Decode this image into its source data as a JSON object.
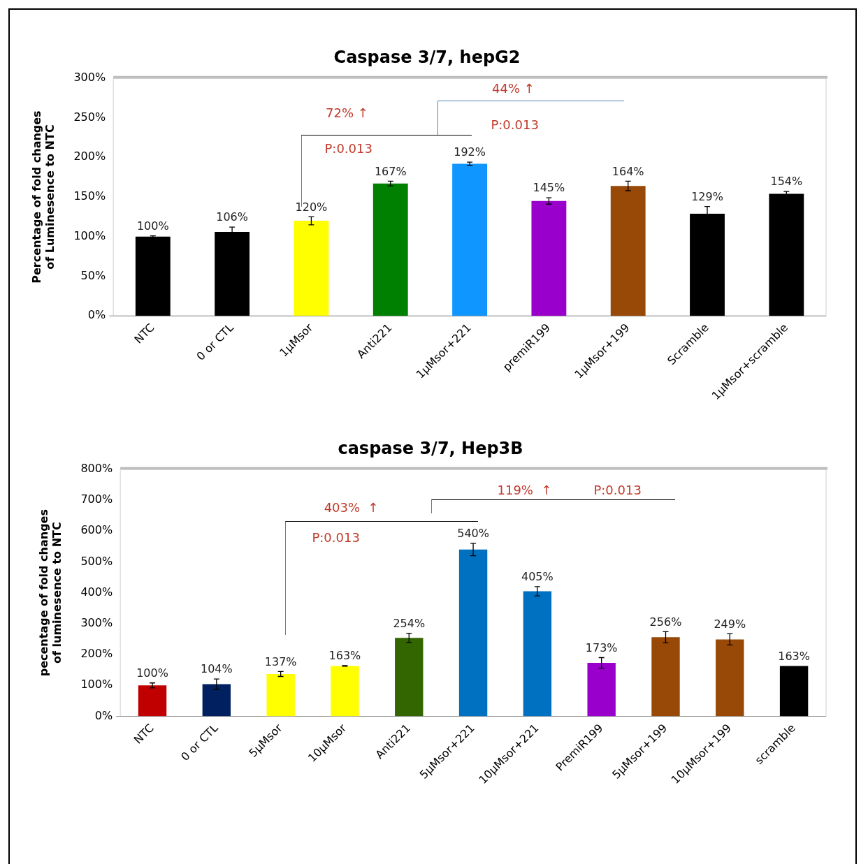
{
  "chart_data": [
    {
      "type": "bar",
      "title": "Caspase 3/7, hepG2",
      "ylabel": "Percentage of fold changes of Luminesence to NTC",
      "categories": [
        "NTC",
        "0 or CTL",
        "1μMsor",
        "Anti221",
        "1μMsor+221",
        "premiR199",
        "1μMsor+199",
        "Scramble",
        "1μMsor+scramble"
      ],
      "values": [
        100,
        106,
        120,
        167,
        192,
        145,
        164,
        129,
        154
      ],
      "colors": [
        "#000000",
        "#000000",
        "#ffff00",
        "#008000",
        "#0f97ff",
        "#9900cc",
        "#984807",
        "#000000",
        "#000000"
      ],
      "errors": [
        1,
        6,
        5,
        3,
        2,
        4,
        6,
        9,
        3
      ],
      "value_labels": [
        "100%",
        "106%",
        "120%",
        "167%",
        "192%",
        "145%",
        "164%",
        "129%",
        "154%"
      ],
      "ylim": [
        0,
        300
      ],
      "yticks": [
        {
          "value": 0,
          "label": "0%"
        },
        {
          "value": 50,
          "label": "50%"
        },
        {
          "value": 100,
          "label": "100%"
        },
        {
          "value": 150,
          "label": "150%"
        },
        {
          "value": 200,
          "label": "200%"
        },
        {
          "value": 250,
          "label": "250%"
        },
        {
          "value": 300,
          "label": "300%"
        }
      ],
      "annotations": [
        "72% ↑",
        "P:0.013",
        "44% ↑",
        "P:0.013"
      ],
      "grid": false,
      "legend": false
    },
    {
      "type": "bar",
      "title": "caspase 3/7, Hep3B",
      "ylabel": "pecentage of fold changes of luminesence to NTC",
      "categories": [
        "NTC",
        "0 or CTL",
        "5μMsor",
        "10μMsor",
        "Anti221",
        "5μMsor+221",
        "10μMsor+221",
        "PremiR199",
        "5μMsor+199",
        "10μMsor+199",
        "scramble"
      ],
      "values": [
        100,
        104,
        137,
        163,
        254,
        540,
        405,
        173,
        256,
        249,
        163
      ],
      "colors": [
        "#c00000",
        "#002060",
        "#ffff00",
        "#ffff00",
        "#336600",
        "#0070c0",
        "#0070c0",
        "#9900cc",
        "#984807",
        "#984807",
        "#000000"
      ],
      "errors": [
        8,
        17,
        8,
        1,
        15,
        20,
        15,
        17,
        18,
        18,
        null
      ],
      "value_labels": [
        "100%",
        "104%",
        "137%",
        "163%",
        "254%",
        "540%",
        "405%",
        "173%",
        "256%",
        "249%",
        "163%"
      ],
      "ylim": [
        0,
        800
      ],
      "yticks": [
        {
          "value": 0,
          "label": "0%"
        },
        {
          "value": 100,
          "label": "100%"
        },
        {
          "value": 200,
          "label": "200%"
        },
        {
          "value": 300,
          "label": "300%"
        },
        {
          "value": 400,
          "label": "400%"
        },
        {
          "value": 500,
          "label": "500%"
        },
        {
          "value": 600,
          "label": "600%"
        },
        {
          "value": 700,
          "label": "700%"
        },
        {
          "value": 800,
          "label": "800%"
        }
      ],
      "annotations": [
        "403%  ↑",
        "P:0.013",
        "119%  ↑",
        "P:0.013"
      ],
      "grid": false,
      "legend": false
    }
  ]
}
